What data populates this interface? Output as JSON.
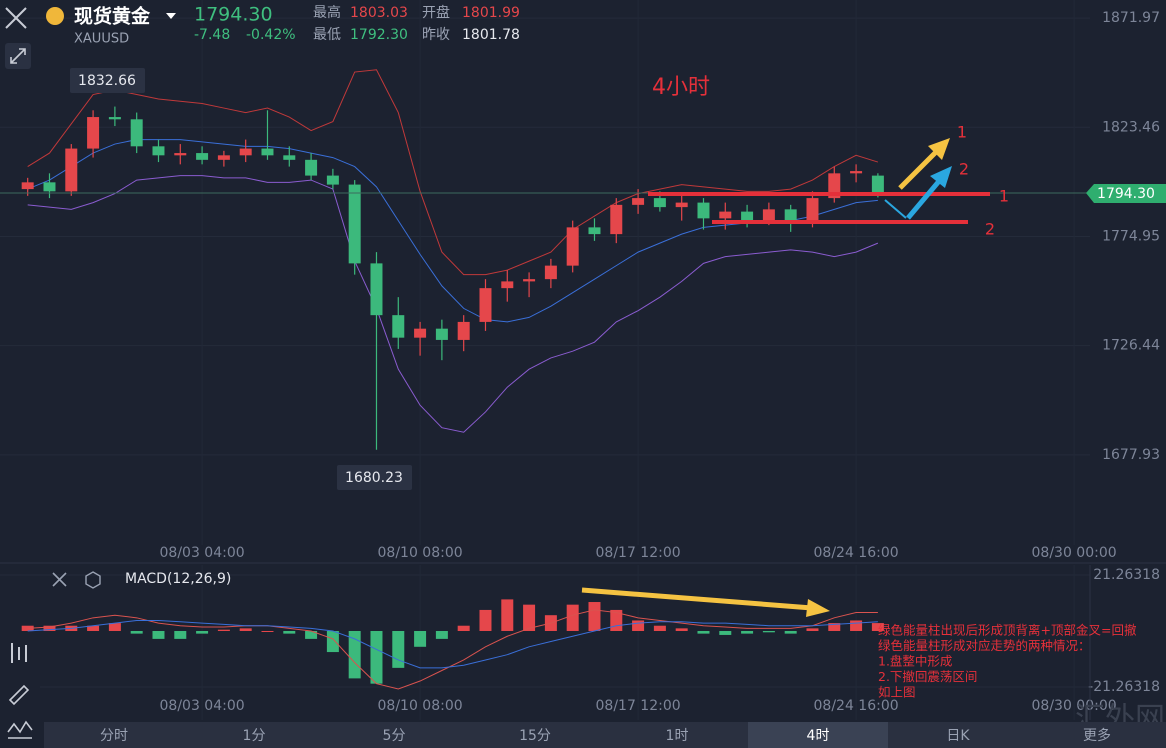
{
  "header": {
    "name": "现货黄金",
    "symbol": "XAUUSD",
    "price": "1794.30",
    "change": "-7.48",
    "change_pct": "-0.42%",
    "high_label": "最高",
    "high": "1803.03",
    "open_label": "开盘",
    "open": "1801.99",
    "low_label": "最低",
    "low": "1792.30",
    "prev_close_label": "昨收",
    "prev_close": "1801.78"
  },
  "annotations": {
    "period": "4小时",
    "arrow_1": "1",
    "arrow_2": "2",
    "line_1": "1",
    "line_2": "2"
  },
  "notes": [
    "绿色能量柱出现后形成顶背离+顶部金叉=回撤",
    "绿色能量柱形成对应走势的两种情况：",
    "1.盘整中形成",
    "2.下撤回震荡区间",
    "如上图"
  ],
  "tabs": [
    "分时",
    "1分",
    "5分",
    "15分",
    "1时",
    "4时",
    "日K",
    "更多"
  ],
  "watermark": "汇外网",
  "chart_data": [
    {
      "type": "candlestick",
      "up_color": "#e5474b",
      "down_color": "#3cb97c",
      "x": [
        0,
        1,
        2,
        3,
        4,
        5,
        6,
        7,
        8,
        9,
        10,
        11,
        12,
        13,
        14,
        15,
        16,
        17,
        18,
        19,
        20,
        21,
        22,
        23,
        24,
        25,
        26,
        27,
        28,
        29,
        30,
        31,
        32,
        33,
        34,
        35,
        36,
        37,
        38,
        39
      ],
      "open": [
        1796,
        1799,
        1795,
        1814,
        1828,
        1827,
        1815,
        1811,
        1812,
        1809,
        1811,
        1814,
        1811,
        1809,
        1802,
        1798,
        1763,
        1740,
        1730,
        1734,
        1729,
        1737,
        1752,
        1755,
        1756,
        1762,
        1779,
        1776,
        1789,
        1792,
        1788,
        1790,
        1783,
        1786,
        1782,
        1787,
        1781,
        1792,
        1803,
        1801.99
      ],
      "high": [
        1801,
        1803,
        1816,
        1831,
        1832.66,
        1830,
        1818,
        1816,
        1815,
        1813,
        1818,
        1831,
        1815,
        1812,
        1805,
        1800,
        1768,
        1748,
        1737,
        1738,
        1740,
        1756,
        1760,
        1759,
        1765,
        1782,
        1783,
        1792,
        1796,
        1795,
        1794,
        1792,
        1790,
        1789,
        1790,
        1789,
        1795,
        1806,
        1807,
        1803.03
      ],
      "low": [
        1793,
        1792,
        1793,
        1810,
        1824,
        1812,
        1808,
        1807,
        1807,
        1806,
        1808,
        1809,
        1806,
        1800,
        1796,
        1758,
        1680.23,
        1725,
        1722,
        1720,
        1724,
        1733,
        1746,
        1748,
        1752,
        1759,
        1773,
        1772,
        1785,
        1786,
        1782,
        1778,
        1778,
        1779,
        1780,
        1777,
        1779,
        1790,
        1799,
        1792.3
      ],
      "close": [
        1799,
        1795,
        1814,
        1828,
        1827,
        1815,
        1811,
        1812,
        1809,
        1811,
        1814,
        1811,
        1809,
        1802,
        1798,
        1763,
        1740,
        1730,
        1734,
        1729,
        1737,
        1752,
        1755,
        1756,
        1762,
        1779,
        1776,
        1789,
        1792,
        1788,
        1790,
        1783,
        1786,
        1782,
        1787,
        1781,
        1792,
        1803,
        1804,
        1794.3
      ],
      "lines": [
        {
          "color": "#c0393a",
          "values": [
            1806,
            1812,
            1825,
            1838,
            1840,
            1838,
            1836,
            1835,
            1834,
            1832,
            1830,
            1832,
            1828,
            1822,
            1826,
            1848,
            1849,
            1830,
            1795,
            1768,
            1758,
            1758,
            1760,
            1764,
            1768,
            1778,
            1784,
            1790,
            1794,
            1796,
            1798,
            1797,
            1796,
            1795,
            1795,
            1796,
            1800,
            1806,
            1811,
            1808
          ]
        },
        {
          "color": "#3a6fd8",
          "values": [
            1796,
            1800,
            1806,
            1812,
            1816,
            1818,
            1818,
            1818,
            1817,
            1816,
            1815,
            1815,
            1814,
            1812,
            1810,
            1806,
            1797,
            1782,
            1767,
            1753,
            1743,
            1738,
            1737,
            1739,
            1744,
            1750,
            1756,
            1762,
            1768,
            1772,
            1776,
            1779,
            1780,
            1781,
            1782,
            1782,
            1784,
            1787,
            1790,
            1791
          ]
        },
        {
          "color": "#8a5cd0",
          "values": [
            1789,
            1788,
            1787,
            1790,
            1794,
            1800,
            1801,
            1802,
            1802,
            1801,
            1801,
            1799,
            1799,
            1800,
            1796,
            1764,
            1743,
            1716,
            1700,
            1690,
            1688,
            1697,
            1708,
            1716,
            1721,
            1724,
            1728,
            1737,
            1742,
            1748,
            1755,
            1763,
            1766,
            1767,
            1768,
            1769,
            1768,
            1766,
            1768,
            1772
          ]
        }
      ],
      "xlim": [
        -1.27,
        48.73
      ],
      "ylim": [
        1637.9,
        1880
      ],
      "yticks": [
        1871.97,
        1823.46,
        1774.95,
        1726.44,
        1677.93
      ],
      "xticks": [
        {
          "value": 8,
          "label": "08/03 04:00"
        },
        {
          "value": 18,
          "label": "08/10 08:00"
        },
        {
          "value": 28,
          "label": "08/17 12:00"
        },
        {
          "value": 38,
          "label": "08/24 16:00"
        },
        {
          "value": 48,
          "label": "08/30 00:00"
        }
      ]
    },
    {
      "type": "bar",
      "title": "MACD(12,26,9)",
      "up_color": "#e5474b",
      "down_color": "#3cb97c",
      "x": [
        0,
        1,
        2,
        3,
        4,
        5,
        6,
        7,
        8,
        9,
        10,
        11,
        12,
        13,
        14,
        15,
        16,
        17,
        18,
        19,
        20,
        21,
        22,
        23,
        24,
        25,
        26,
        27,
        28,
        29,
        30,
        31,
        32,
        33,
        34,
        35,
        36,
        37,
        38,
        39
      ],
      "values": [
        2,
        2,
        2,
        2,
        3,
        -1,
        -3,
        -3,
        -1,
        0.5,
        1,
        0,
        -1,
        -3,
        -8,
        -18,
        -20,
        -14,
        -6,
        -3,
        2,
        8,
        12,
        10,
        6,
        10,
        11,
        8,
        4,
        2,
        1,
        -1,
        -1.5,
        -1,
        -0.5,
        -1,
        1,
        3,
        4,
        3
      ],
      "lines": [
        {
          "color": "#d9534f",
          "values": [
            1,
            1.5,
            3,
            5,
            6,
            5,
            3,
            2,
            1.5,
            1.5,
            2,
            2,
            1,
            0,
            -3,
            -12,
            -20,
            -22,
            -19,
            -15,
            -11,
            -6,
            -2,
            1,
            3,
            6,
            8,
            7,
            5,
            4,
            3,
            2,
            1.5,
            1,
            1,
            1,
            2,
            5,
            7,
            7
          ]
        },
        {
          "color": "#3a6fd8",
          "values": [
            0,
            0.5,
            1,
            2,
            3,
            4,
            4,
            3.5,
            3,
            2.5,
            2,
            2,
            1.5,
            1,
            0,
            -3,
            -7,
            -11,
            -14,
            -14,
            -13,
            -11,
            -9,
            -6,
            -4,
            -2,
            0,
            2,
            3,
            3.5,
            3.5,
            3,
            3,
            2.5,
            2,
            2,
            2,
            2.5,
            3,
            3.5
          ]
        }
      ],
      "xlim": [
        -1.27,
        48.73
      ],
      "ylim": [
        -33.8,
        25.06
      ],
      "yticks": [
        21.26318,
        -21.26318
      ],
      "xticks": [
        {
          "value": 8,
          "label": "08/03 04:00"
        },
        {
          "value": 18,
          "label": "08/10 08:00"
        },
        {
          "value": 28,
          "label": "08/17 12:00"
        },
        {
          "value": 38,
          "label": "08/24 16:00"
        },
        {
          "value": 48,
          "label": "08/30 00:00"
        }
      ]
    }
  ]
}
